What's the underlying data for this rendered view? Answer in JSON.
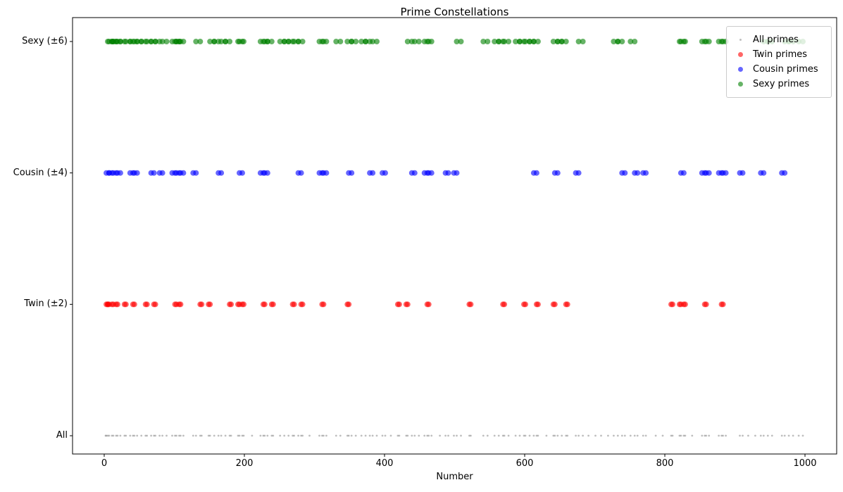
{
  "chart_data": {
    "type": "scatter",
    "title": "Prime Constellations",
    "xlabel": "Number",
    "ylabel": "",
    "x_ticks": [
      0,
      200,
      400,
      600,
      800,
      1000
    ],
    "xlim": [
      -45.2,
      1045.2
    ],
    "ylim": [
      -0.139,
      3.182
    ],
    "grid": false,
    "legend_position": "upper right",
    "rows": [
      "All",
      "Twin (±2)",
      "Cousin (±4)",
      "Sexy (±6)"
    ],
    "series": [
      {
        "name": "All primes",
        "row": 0,
        "color": "#808080",
        "alpha": 0.5,
        "marker_radius": 1.4,
        "legend_radius": 1.6,
        "values": [
          2,
          3,
          5,
          7,
          11,
          13,
          17,
          19,
          23,
          29,
          31,
          37,
          41,
          43,
          47,
          53,
          59,
          61,
          67,
          71,
          73,
          79,
          83,
          89,
          97,
          101,
          103,
          107,
          109,
          113,
          127,
          131,
          137,
          139,
          149,
          151,
          157,
          163,
          167,
          173,
          179,
          181,
          191,
          193,
          197,
          199,
          211,
          223,
          227,
          229,
          233,
          239,
          241,
          251,
          257,
          263,
          269,
          271,
          277,
          281,
          283,
          293,
          307,
          311,
          313,
          317,
          331,
          337,
          347,
          349,
          353,
          359,
          367,
          373,
          379,
          383,
          389,
          397,
          401,
          409,
          419,
          421,
          431,
          433,
          439,
          443,
          449,
          457,
          461,
          463,
          467,
          479,
          487,
          491,
          499,
          503,
          509,
          521,
          523,
          541,
          547,
          557,
          563,
          569,
          571,
          577,
          587,
          593,
          599,
          601,
          607,
          613,
          617,
          619,
          631,
          641,
          643,
          647,
          653,
          659,
          661,
          673,
          677,
          683,
          691,
          701,
          709,
          719,
          727,
          733,
          739,
          743,
          751,
          757,
          761,
          769,
          773,
          787,
          797,
          809,
          811,
          821,
          823,
          827,
          829,
          839,
          853,
          857,
          859,
          863,
          877,
          881,
          883,
          887,
          907,
          911,
          919,
          929,
          937,
          941,
          947,
          953,
          967,
          971,
          977,
          983,
          991,
          997
        ]
      },
      {
        "name": "Twin primes",
        "row": 1,
        "color": "#ff0000",
        "alpha": 0.6,
        "marker_radius": 4,
        "legend_radius": 3.5,
        "pair_offset": 2,
        "pair_starts": [
          3,
          5,
          11,
          17,
          29,
          41,
          59,
          71,
          101,
          107,
          137,
          149,
          179,
          191,
          197,
          227,
          239,
          269,
          281,
          311,
          347,
          419,
          431,
          461,
          521,
          569,
          599,
          617,
          641,
          659,
          809,
          821,
          827,
          857,
          881
        ]
      },
      {
        "name": "Cousin primes",
        "row": 2,
        "color": "#0000ff",
        "alpha": 0.6,
        "marker_radius": 4,
        "legend_radius": 3.5,
        "pair_offset": 4,
        "pair_starts": [
          3,
          7,
          13,
          19,
          37,
          43,
          67,
          79,
          97,
          103,
          109,
          127,
          163,
          193,
          223,
          229,
          277,
          307,
          313,
          349,
          379,
          397,
          439,
          457,
          463,
          487,
          499,
          613,
          643,
          673,
          739,
          757,
          769,
          823,
          853,
          859,
          877,
          883,
          907,
          937,
          967
        ]
      },
      {
        "name": "Sexy primes",
        "row": 3,
        "color": "#008000",
        "alpha": 0.6,
        "marker_radius": 4,
        "legend_radius": 3.5,
        "pair_offset": 6,
        "pair_starts": [
          5,
          7,
          11,
          13,
          17,
          23,
          31,
          37,
          41,
          47,
          53,
          61,
          67,
          73,
          83,
          97,
          101,
          103,
          107,
          131,
          151,
          157,
          167,
          173,
          191,
          193,
          223,
          227,
          233,
          251,
          257,
          263,
          271,
          277,
          307,
          311,
          331,
          347,
          353,
          367,
          373,
          383,
          433,
          443,
          457,
          461,
          503,
          541,
          557,
          563,
          571,
          587,
          593,
          601,
          607,
          613,
          641,
          647,
          653,
          677,
          727,
          733,
          751,
          821,
          823,
          853,
          857,
          877,
          881,
          941,
          947,
          971,
          977,
          991
        ]
      }
    ]
  }
}
